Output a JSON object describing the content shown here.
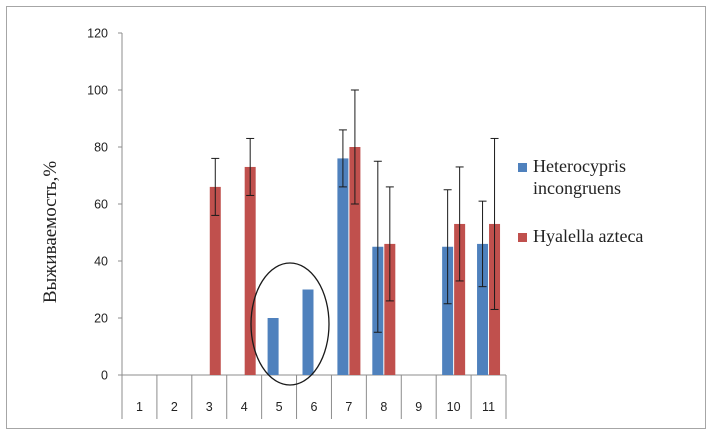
{
  "chart_data": {
    "type": "bar",
    "ylabel": "Выживаемость,%",
    "xlabel": "",
    "categories": [
      "1",
      "2",
      "3",
      "4",
      "5",
      "6",
      "7",
      "8",
      "9",
      "10",
      "11"
    ],
    "ylim": [
      0,
      120
    ],
    "yticks": [
      0,
      20,
      40,
      60,
      80,
      100,
      120
    ],
    "grid": false,
    "legend_position": "right",
    "series": [
      {
        "name": "Heterocypris incongruens",
        "color": "#4f81bd",
        "values": [
          0,
          0,
          0,
          0,
          20,
          30,
          76,
          45,
          0,
          45,
          46
        ],
        "errors": [
          null,
          null,
          null,
          null,
          null,
          null,
          10,
          30,
          null,
          20,
          15
        ]
      },
      {
        "name": "Hyalella azteca",
        "color": "#c0504d",
        "values": [
          0,
          0,
          66,
          73,
          0,
          0,
          80,
          46,
          0,
          53,
          53
        ],
        "errors": [
          null,
          null,
          10,
          10,
          null,
          null,
          20,
          20,
          null,
          20,
          30
        ]
      }
    ],
    "annotation": "ellipse around categories 5 and 6"
  }
}
